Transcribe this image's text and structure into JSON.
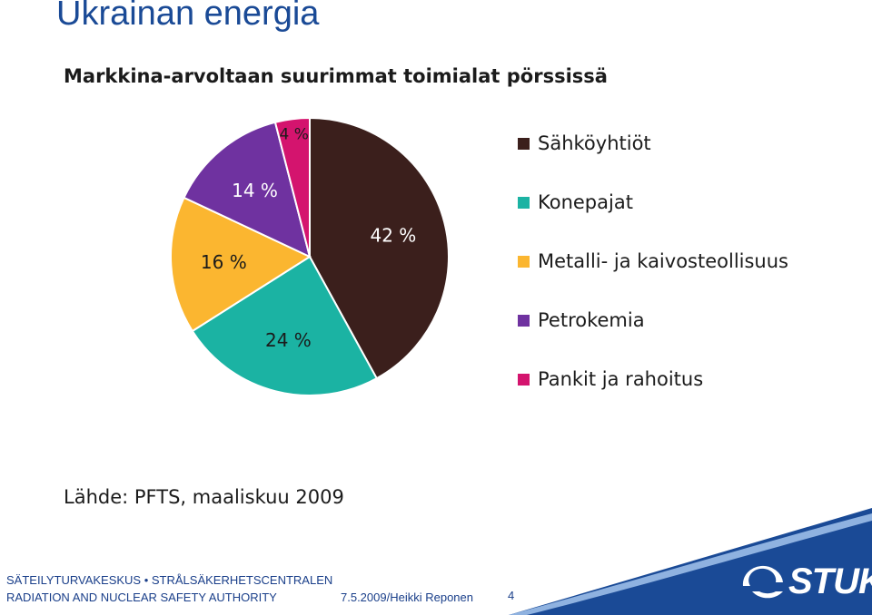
{
  "slide": {
    "title": "Ukrainan energia",
    "source": "Lähde: PFTS, maaliskuu 2009"
  },
  "chart_data": {
    "type": "pie",
    "title": "Markkina-arvoltaan suurimmat toimialat pörssissä",
    "legend_position": "right",
    "slices": [
      {
        "name": "Sähköyhtiöt",
        "value": 42,
        "label": "42 %",
        "color": "#3b1f1c"
      },
      {
        "name": "Konepajat",
        "value": 24,
        "label": "24 %",
        "color": "#1bb3a3"
      },
      {
        "name": "Metalli- ja kaivosteollisuus",
        "value": 16,
        "label": "16 %",
        "color": "#fbb630"
      },
      {
        "name": "Petrokemia",
        "value": 14,
        "label": "14 %",
        "color": "#6f32a0"
      },
      {
        "name": "Pankit ja rahoitus",
        "value": 4,
        "label": "4 %",
        "color": "#d4146e"
      }
    ]
  },
  "footer": {
    "org_line1": "SÄTEILYTURVAKESKUS • STRÅLSÄKERHETSCENTRALEN",
    "org_line2": "RADIATION AND NUCLEAR SAFETY AUTHORITY",
    "date_author": "7.5.2009/Heikki Reponen",
    "page_number": "4",
    "logo_text": "STUK",
    "brand_color": "#1a4a96"
  }
}
